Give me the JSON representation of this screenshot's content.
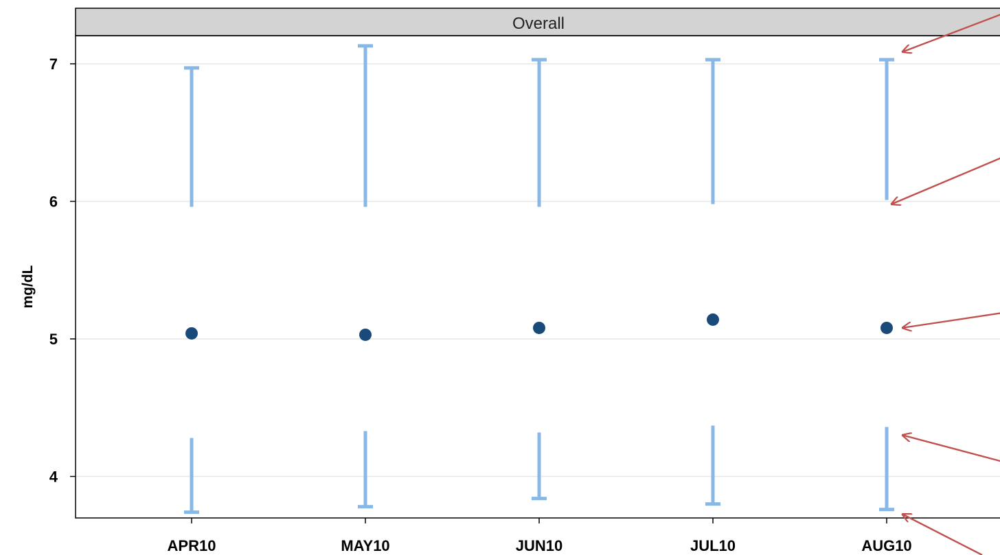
{
  "chart_data": {
    "type": "scatter",
    "panel_title": "Overall",
    "ylabel": "mg/dL",
    "xlabel": "",
    "categories": [
      "APR10",
      "MAY10",
      "JUN10",
      "JUL10",
      "AUG10"
    ],
    "ylim": [
      3.7,
      7.18
    ],
    "yticks": [
      4,
      5,
      6,
      7
    ],
    "grid": true,
    "series": [
      {
        "kind": "points",
        "values": [
          5.04,
          5.03,
          5.08,
          5.14,
          5.08
        ]
      },
      {
        "kind": "upper-range",
        "low": [
          5.96,
          5.96,
          5.96,
          5.98,
          6.01
        ],
        "high": [
          6.97,
          7.13,
          7.03,
          7.03,
          7.03
        ]
      },
      {
        "kind": "lower-range",
        "low": [
          3.74,
          3.78,
          3.84,
          3.8,
          3.76
        ],
        "high": [
          4.28,
          4.33,
          4.32,
          4.37,
          4.36
        ]
      }
    ],
    "annotations": "arrows pointing to each statistic of the AUG10 column",
    "colors": {
      "point": "#1a4a7a",
      "range": "#8ab8e6",
      "grid": "#e6e6e6",
      "header": "#d3d3d3",
      "arrow": "#c0504d"
    }
  }
}
